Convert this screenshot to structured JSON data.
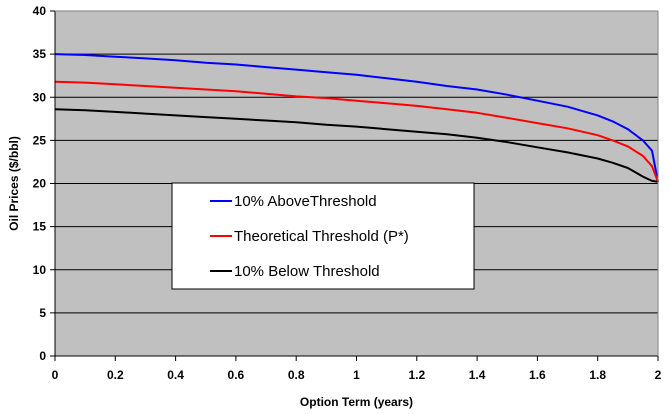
{
  "chart_data": {
    "type": "line",
    "title": "",
    "xlabel": "Option Term (years)",
    "ylabel": "Oil Prices ($/bbl)",
    "xlim": [
      0,
      2
    ],
    "ylim": [
      0,
      40
    ],
    "xticks": [
      0,
      0.2,
      0.4,
      0.6,
      0.8,
      1,
      1.2,
      1.4,
      1.6,
      1.8,
      2
    ],
    "xtick_labels": [
      "0",
      "0.2",
      "0.4",
      "0.6",
      "0.8",
      "1",
      "1.2",
      "1.4",
      "1.6",
      "1.8",
      "2"
    ],
    "yticks": [
      0,
      5,
      10,
      15,
      20,
      25,
      30,
      35,
      40
    ],
    "ytick_labels": [
      "0",
      "5",
      "10",
      "15",
      "20",
      "25",
      "30",
      "35",
      "40"
    ],
    "grid": "horizontal",
    "plot_background": "#c0c0c0",
    "legend_position": "center-left",
    "series": [
      {
        "name": "10% AboveThreshold",
        "color": "#0000ff",
        "x": [
          0,
          0.1,
          0.2,
          0.3,
          0.4,
          0.5,
          0.6,
          0.7,
          0.8,
          0.9,
          1.0,
          1.1,
          1.2,
          1.3,
          1.4,
          1.5,
          1.6,
          1.7,
          1.8,
          1.85,
          1.9,
          1.95,
          1.98,
          2.0
        ],
        "y": [
          35.0,
          34.9,
          34.7,
          34.5,
          34.3,
          34.0,
          33.8,
          33.5,
          33.2,
          32.9,
          32.6,
          32.2,
          31.8,
          31.3,
          30.9,
          30.3,
          29.6,
          28.9,
          27.9,
          27.2,
          26.3,
          25.0,
          23.8,
          20.2
        ]
      },
      {
        "name": "Theoretical Threshold (P*)",
        "color": "#ff0000",
        "x": [
          0,
          0.1,
          0.2,
          0.3,
          0.4,
          0.5,
          0.6,
          0.7,
          0.8,
          0.9,
          1.0,
          1.1,
          1.2,
          1.3,
          1.4,
          1.5,
          1.6,
          1.7,
          1.8,
          1.85,
          1.9,
          1.95,
          1.98,
          2.0
        ],
        "y": [
          31.8,
          31.7,
          31.5,
          31.3,
          31.1,
          30.9,
          30.7,
          30.4,
          30.1,
          29.9,
          29.6,
          29.3,
          29.0,
          28.6,
          28.2,
          27.6,
          27.0,
          26.4,
          25.6,
          25.0,
          24.3,
          23.2,
          22.0,
          20.2
        ]
      },
      {
        "name": "10% Below Threshold",
        "color": "#000000",
        "x": [
          0,
          0.1,
          0.2,
          0.3,
          0.4,
          0.5,
          0.6,
          0.7,
          0.8,
          0.9,
          1.0,
          1.1,
          1.2,
          1.3,
          1.4,
          1.5,
          1.6,
          1.7,
          1.8,
          1.85,
          1.9,
          1.95,
          1.98,
          2.0
        ],
        "y": [
          28.6,
          28.5,
          28.3,
          28.1,
          27.9,
          27.7,
          27.5,
          27.3,
          27.1,
          26.8,
          26.6,
          26.3,
          26.0,
          25.7,
          25.3,
          24.8,
          24.2,
          23.6,
          22.9,
          22.4,
          21.8,
          20.8,
          20.3,
          20.2
        ]
      }
    ]
  }
}
